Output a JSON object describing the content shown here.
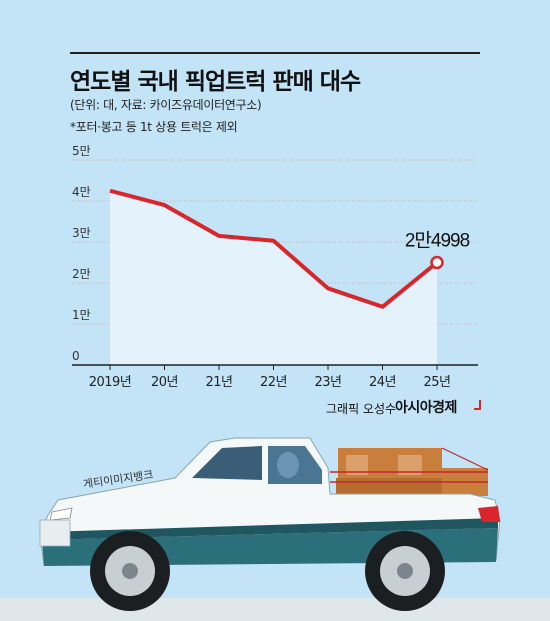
{
  "header": {
    "title": "연도별 국내 픽업트럭 판매 대수",
    "unit_source": "(단위: 대, 자료: 카이즈유데이터연구소)",
    "note": "*포터·봉고 등 1t 상용 트럭은 제외"
  },
  "credits": {
    "graphic": "그래픽 오성수",
    "brand": "아시아경제",
    "photo": "게티이미지뱅크"
  },
  "colors": {
    "background": "#c3e3f7",
    "line": "#d9262b",
    "area_fill": "#e4f2fb",
    "grid": "#e0a0a0"
  },
  "chart_data": {
    "type": "line",
    "categories": [
      "2019년",
      "20년",
      "21년",
      "22년",
      "23년",
      "24년",
      "25년"
    ],
    "values": [
      42500,
      39000,
      31500,
      30300,
      18700,
      14200,
      24998
    ],
    "ylim": [
      0,
      50000
    ],
    "yticks": [
      0,
      10000,
      20000,
      30000,
      40000,
      50000
    ],
    "ytick_labels": [
      "0",
      "1만",
      "2만",
      "3만",
      "4만",
      "5만"
    ],
    "annotation": {
      "index": 6,
      "text": "2만4998"
    },
    "grid": true
  }
}
